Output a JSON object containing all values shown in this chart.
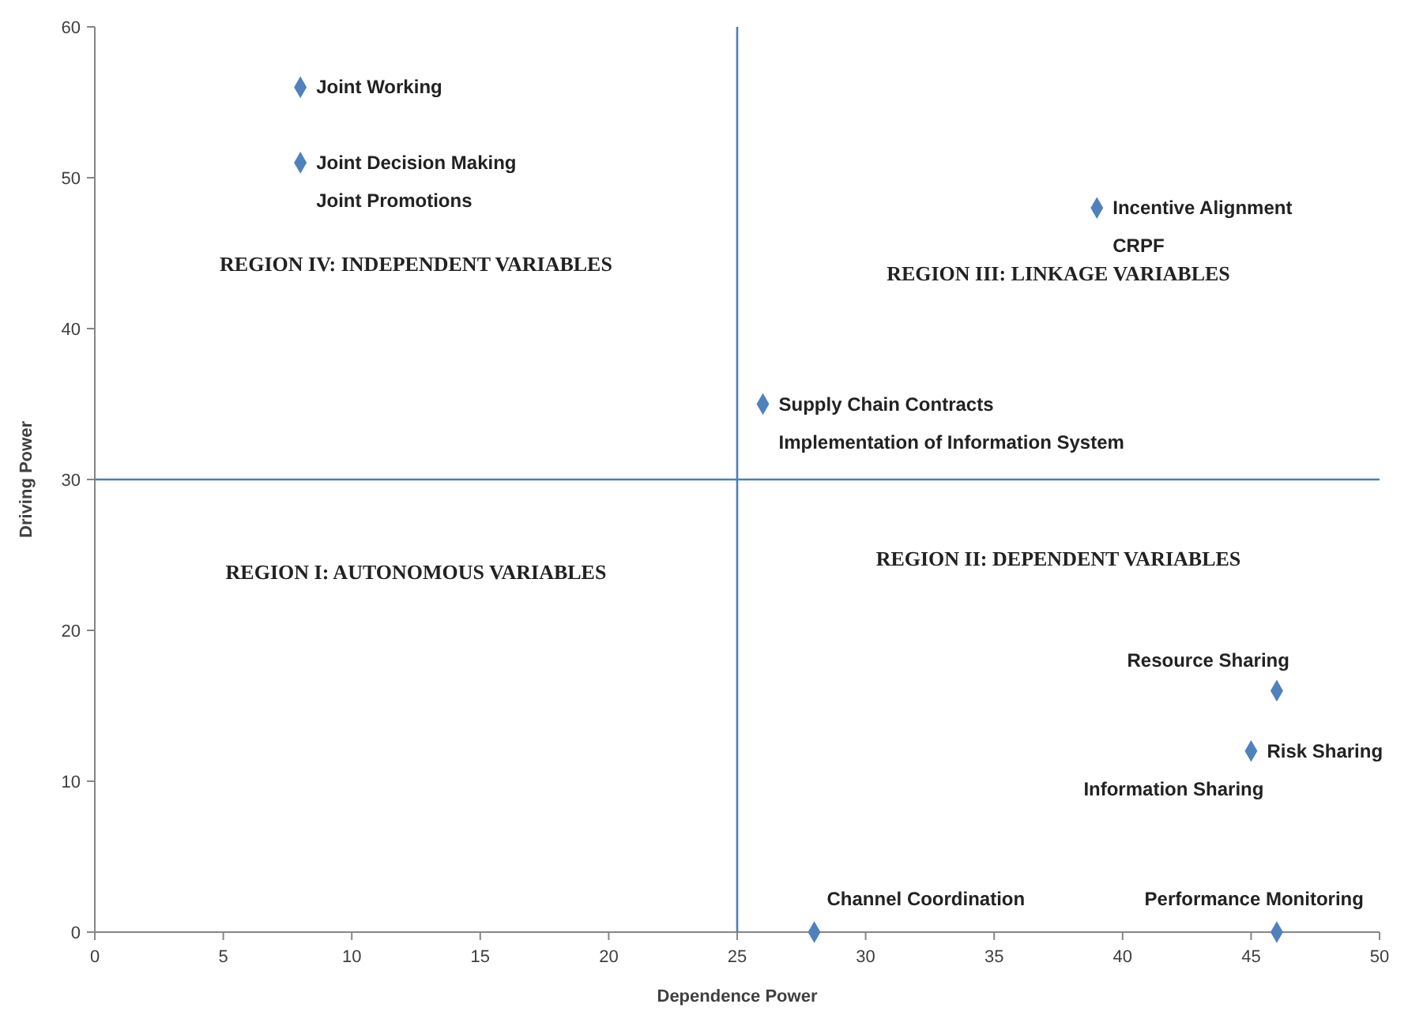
{
  "chart_data": {
    "type": "scatter",
    "xlabel": "Dependence Power",
    "ylabel": "Driving Power",
    "x": [
      8,
      8,
      39,
      26,
      46,
      45,
      28,
      46
    ],
    "series": [
      {
        "color": "#4f81bd",
        "values": [
          56,
          51,
          48,
          35,
          16,
          12,
          0,
          0
        ]
      }
    ],
    "marker": "diamond",
    "grid": false,
    "xlim": [
      0,
      50
    ],
    "xticks": [
      0,
      5,
      10,
      15,
      20,
      25,
      30,
      35,
      40,
      45,
      50
    ],
    "ylim": [
      0,
      60
    ],
    "yticks": [
      0,
      10,
      20,
      30,
      40,
      50,
      60
    ],
    "ref_lines": [
      {
        "axis": "x",
        "value": 25,
        "color": "#4a7ebb"
      },
      {
        "axis": "y",
        "value": 30,
        "color": "#4a7ebb"
      }
    ],
    "annotations": [
      {
        "text": "Joint Working",
        "x": 8,
        "y": 56
      },
      {
        "text": "Joint Decision Making",
        "x": 8,
        "y": 51
      },
      {
        "text": "Joint Promotions",
        "x": 8,
        "y": 51
      },
      {
        "text": "Incentive Alignment",
        "x": 39,
        "y": 48
      },
      {
        "text": "CRPF",
        "x": 39,
        "y": 48
      },
      {
        "text": "Supply Chain Contracts",
        "x": 26,
        "y": 35
      },
      {
        "text": "Implementation of Information System",
        "x": 26,
        "y": 35
      },
      {
        "text": "Resource Sharing",
        "x": 46,
        "y": 16
      },
      {
        "text": "Risk Sharing",
        "x": 45,
        "y": 12
      },
      {
        "text": "Information Sharing",
        "x": 45,
        "y": 12
      },
      {
        "text": "Channel Coordination",
        "x": 28,
        "y": 0
      },
      {
        "text": "Performance Monitoring",
        "x": 46,
        "y": 0
      },
      "REGION IV: INDEPENDENT VARIABLES",
      "REGION III: LINKAGE VARIABLES",
      "REGION I: AUTONOMOUS VARIABLES",
      "REGION II: DEPENDENT VARIABLES"
    ]
  }
}
